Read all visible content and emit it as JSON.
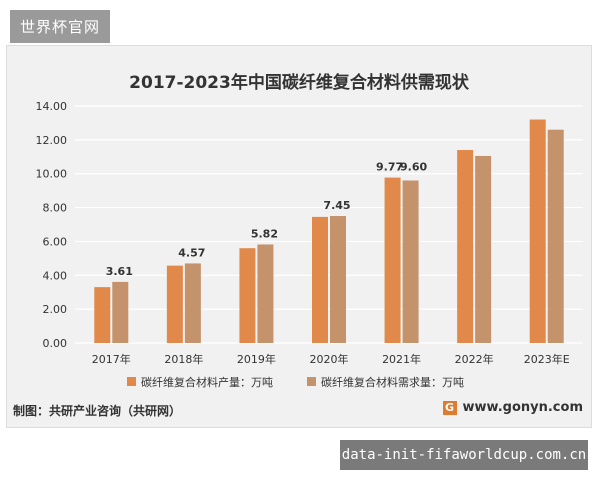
{
  "watermark_top": "世界杯官网",
  "watermark_bottom": "data-init-fifaworldcup.com.cn",
  "colors": {
    "production": "#e0894a",
    "demand": "#c4926b",
    "background": "#f1f1f1",
    "grid": "#ffffff"
  },
  "footer": {
    "source": "制图：共研产业咨询（共研网）",
    "site": "www.gonyn.com",
    "logo_letter": "G"
  },
  "chart_data": {
    "type": "bar",
    "title": "2017-2023年中国碳纤维复合材料供需现状",
    "categories": [
      "2017年",
      "2018年",
      "2019年",
      "2020年",
      "2021年",
      "2022年",
      "2023年E"
    ],
    "ylim": [
      0,
      14
    ],
    "yticks": [
      "0.00",
      "2.00",
      "4.00",
      "6.00",
      "8.00",
      "10.00",
      "12.00",
      "14.00"
    ],
    "grid": true,
    "legend": "bottom",
    "series": [
      {
        "name": "碳纤维复合材料产量：万吨",
        "values": [
          3.3,
          4.57,
          5.6,
          7.45,
          9.77,
          11.4,
          13.2
        ]
      },
      {
        "name": "碳纤维复合材料需求量：万吨",
        "values": [
          3.61,
          4.7,
          5.82,
          7.5,
          9.6,
          11.05,
          12.6
        ]
      }
    ],
    "data_labels": [
      {
        "text": "3.61",
        "category": 0
      },
      {
        "text": "4.57",
        "category": 1
      },
      {
        "text": "5.82",
        "category": 2
      },
      {
        "text": "7.45",
        "category": 3
      },
      {
        "text": "9.77",
        "category": 4
      },
      {
        "text": "9.60",
        "category": 4
      }
    ]
  }
}
